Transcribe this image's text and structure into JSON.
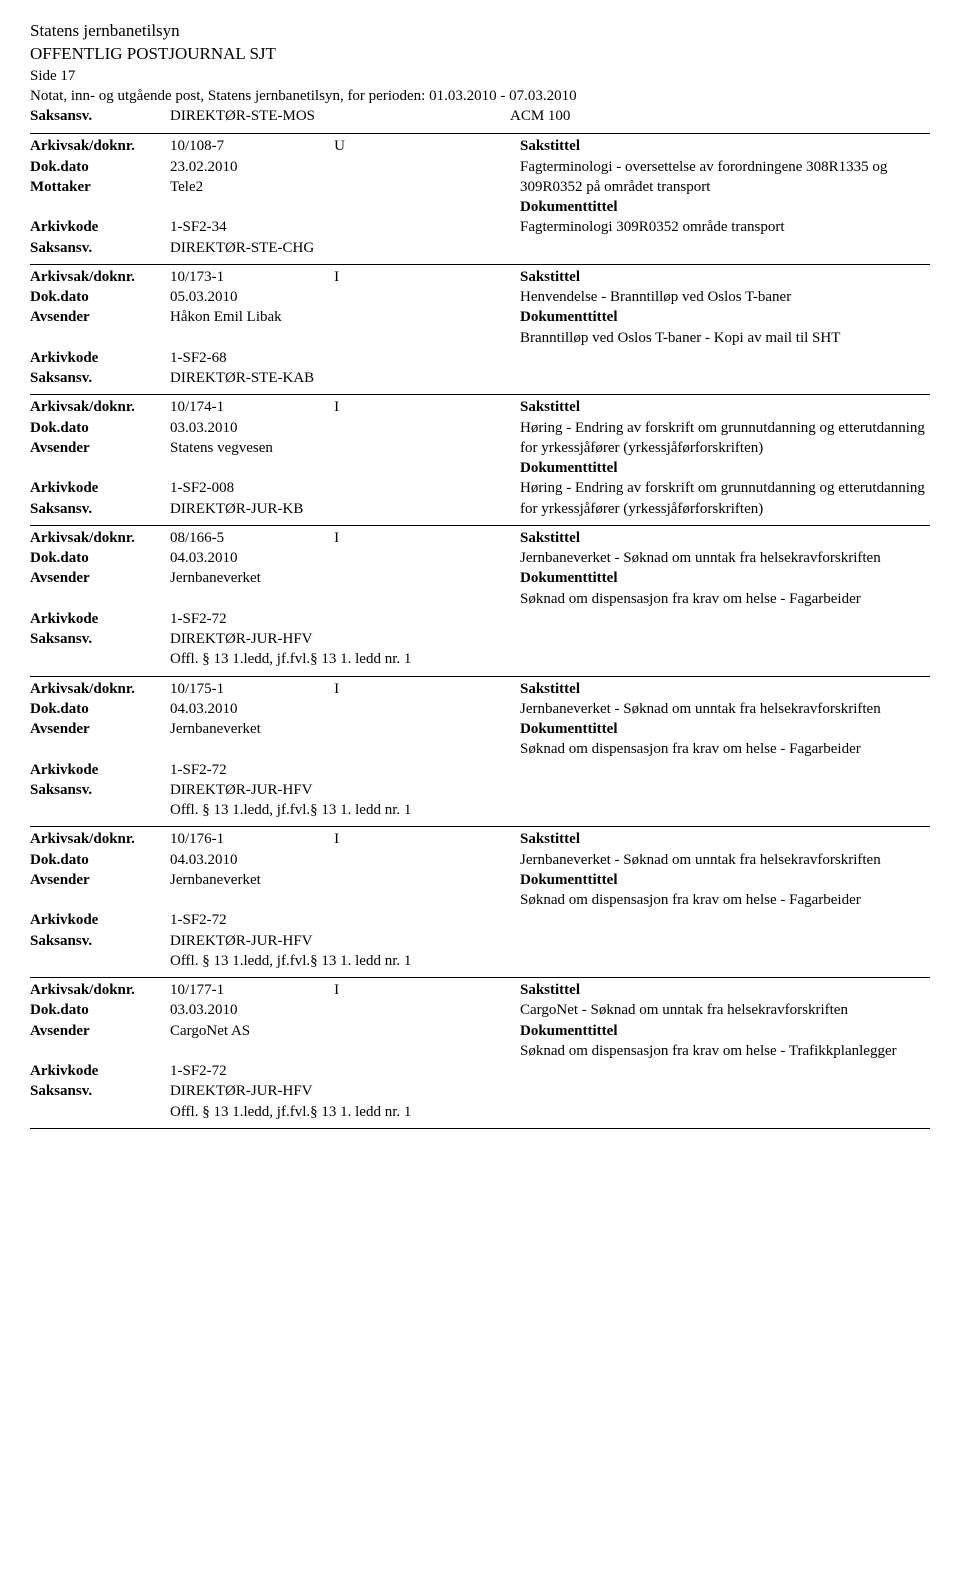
{
  "header": {
    "org": "Statens jernbanetilsyn",
    "title": "OFFENTLIG POSTJOURNAL SJT",
    "page": "Side 17",
    "subtitle": "Notat, inn- og utgående post, Statens jernbanetilsyn, for perioden: 01.03.2010 - 07.03.2010"
  },
  "topRow": {
    "saksansv_label": "Saksansv.",
    "saksansv_value": "DIREKTØR-STE-MOS",
    "extra": "ACM 100"
  },
  "labels": {
    "arkivsak": "Arkivsak/doknr.",
    "dokdato": "Dok.dato",
    "mottaker": "Mottaker",
    "avsender": "Avsender",
    "arkivkode": "Arkivkode",
    "saksansv": "Saksansv.",
    "sakstittel": "Sakstittel",
    "dokumenttittel": "Dokumenttittel"
  },
  "entries": [
    {
      "doknr": "10/108-7",
      "dir": "U",
      "dokdato": "23.02.2010",
      "partyLabel": "Mottaker",
      "party": "Tele2",
      "arkivkode": "1-SF2-34",
      "saksansv": "DIREKTØR-STE-CHG",
      "offl": "",
      "sakstittel": "Fagterminologi - oversettelse av forordningene 308R1335 og 309R0352 på området transport",
      "doktittel": "Fagterminologi 309R0352 område transport"
    },
    {
      "doknr": "10/173-1",
      "dir": "I",
      "dokdato": "05.03.2010",
      "partyLabel": "Avsender",
      "party": "Håkon Emil Libak",
      "arkivkode": "1-SF2-68",
      "saksansv": "DIREKTØR-STE-KAB",
      "offl": "",
      "sakstittel": "Henvendelse - Branntilløp ved Oslos T-baner",
      "doktittel": "Branntilløp ved Oslos T-baner - Kopi av mail til SHT"
    },
    {
      "doknr": "10/174-1",
      "dir": "I",
      "dokdato": "03.03.2010",
      "partyLabel": "Avsender",
      "party": "Statens vegvesen",
      "arkivkode": "1-SF2-008",
      "saksansv": "DIREKTØR-JUR-KB",
      "offl": "",
      "sakstittel": "Høring - Endring av forskrift om grunnutdanning og etterutdanning for yrkessjåfører (yrkessjåførforskriften)",
      "doktittel": "Høring - Endring av forskrift om grunnutdanning og etterutdanning for yrkessjåfører (yrkessjåførforskriften)"
    },
    {
      "doknr": "08/166-5",
      "dir": "I",
      "dokdato": "04.03.2010",
      "partyLabel": "Avsender",
      "party": "Jernbaneverket",
      "arkivkode": "1-SF2-72",
      "saksansv": "DIREKTØR-JUR-HFV",
      "offl": "Offl. § 13 1.ledd, jf.fvl.§ 13 1. ledd nr. 1",
      "sakstittel": "Jernbaneverket - Søknad om unntak fra helsekravforskriften",
      "doktittel": "Søknad om dispensasjon fra krav om helse - Fagarbeider"
    },
    {
      "doknr": "10/175-1",
      "dir": "I",
      "dokdato": "04.03.2010",
      "partyLabel": "Avsender",
      "party": "Jernbaneverket",
      "arkivkode": "1-SF2-72",
      "saksansv": "DIREKTØR-JUR-HFV",
      "offl": "Offl. § 13 1.ledd, jf.fvl.§ 13 1. ledd nr. 1",
      "sakstittel": "Jernbaneverket - Søknad om unntak fra helsekravforskriften",
      "doktittel": "Søknad om dispensasjon fra krav om helse - Fagarbeider"
    },
    {
      "doknr": "10/176-1",
      "dir": "I",
      "dokdato": "04.03.2010",
      "partyLabel": "Avsender",
      "party": "Jernbaneverket",
      "arkivkode": "1-SF2-72",
      "saksansv": "DIREKTØR-JUR-HFV",
      "offl": "Offl. § 13 1.ledd, jf.fvl.§ 13 1. ledd nr. 1",
      "sakstittel": "Jernbaneverket - Søknad om unntak fra helsekravforskriften",
      "doktittel": "Søknad om dispensasjon fra krav om helse - Fagarbeider"
    },
    {
      "doknr": "10/177-1",
      "dir": "I",
      "dokdato": "03.03.2010",
      "partyLabel": "Avsender",
      "party": "CargoNet AS",
      "arkivkode": "1-SF2-72",
      "saksansv": "DIREKTØR-JUR-HFV",
      "offl": "Offl. § 13 1.ledd, jf.fvl.§ 13 1. ledd nr. 1",
      "sakstittel": "CargoNet - Søknad om unntak fra helsekravforskriften",
      "doktittel": "Søknad om dispensasjon fra krav om helse - Trafikkplanlegger"
    }
  ]
}
